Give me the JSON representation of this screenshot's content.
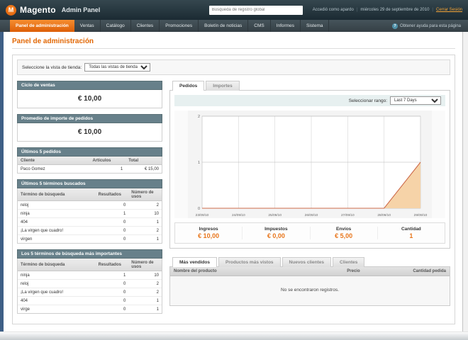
{
  "header": {
    "logo_title": "Magento",
    "logo_subtitle": "Admin Panel",
    "logo_icon": "magento-m-badge",
    "search_placeholder": "Búsqueda de registro global",
    "logged_in_as": "Accedió como apardo",
    "date": "miércoles 29 de septiembre de 2010",
    "logout": "Cerrar Sesión"
  },
  "nav": {
    "items": [
      {
        "label": "Panel de administración",
        "active": true
      },
      {
        "label": "Ventas",
        "active": false
      },
      {
        "label": "Catálogo",
        "active": false
      },
      {
        "label": "Clientes",
        "active": false
      },
      {
        "label": "Promociones",
        "active": false
      },
      {
        "label": "Boletín de noticias",
        "active": false
      },
      {
        "label": "CMS",
        "active": false
      },
      {
        "label": "Informes",
        "active": false
      },
      {
        "label": "Sistema",
        "active": false
      }
    ],
    "help_icon": "?",
    "help": "Obtener ayuda para esta página"
  },
  "page": {
    "title": "Panel de administración",
    "store_view_label": "Seleccione la vista de tienda:",
    "store_view_value": "Todas las vistas de tienda"
  },
  "left": {
    "lifetime": {
      "title": "Ciclo de ventas",
      "value": "€ 10,00"
    },
    "average": {
      "title": "Promedio de importe de pedidos",
      "value": "€ 10,00"
    },
    "last_orders": {
      "title": "Últimos 5 pedidos",
      "columns": [
        "Cliente",
        "Artículos",
        "Total"
      ],
      "rows": [
        [
          "Paco Gomez",
          "1",
          "€ 15,00"
        ]
      ]
    },
    "last_search": {
      "title": "Últimos 5 términos buscados",
      "columns": [
        "Término de búsqueda",
        "Resultados",
        "Número de usos"
      ],
      "rows": [
        [
          "reloj",
          "0",
          "2"
        ],
        [
          "ninja",
          "1",
          "10"
        ],
        [
          "404",
          "0",
          "1"
        ],
        [
          "¡La virgen que cuadro!",
          "0",
          "2"
        ],
        [
          "virgen",
          "0",
          "1"
        ]
      ]
    },
    "top_search": {
      "title": "Los 5 términos de búsqueda más importantes",
      "columns": [
        "Término de búsqueda",
        "Resultados",
        "Número de usos"
      ],
      "rows": [
        [
          "ninja",
          "1",
          "10"
        ],
        [
          "reloj",
          "0",
          "2"
        ],
        [
          "¡La virgen que cuadro!",
          "0",
          "2"
        ],
        [
          "404",
          "0",
          "1"
        ],
        [
          "virge",
          "0",
          "1"
        ]
      ]
    }
  },
  "dashboard": {
    "tabs": [
      {
        "label": "Pedidos",
        "active": true
      },
      {
        "label": "Importes",
        "active": false
      }
    ],
    "range_label": "Seleccionar rango:",
    "range_value": "Last 7 Days",
    "totals": [
      {
        "label": "Ingresos",
        "value": "€ 10,00"
      },
      {
        "label": "Impuestos",
        "value": "€ 0,00"
      },
      {
        "label": "Envíos",
        "value": "€ 5,00"
      },
      {
        "label": "Cantidad",
        "value": "1"
      }
    ],
    "bottom_tabs": [
      {
        "label": "Más vendidos",
        "active": true
      },
      {
        "label": "Productos más vistos",
        "active": false
      },
      {
        "label": "Nuevos clientes",
        "active": false
      },
      {
        "label": "Clientes",
        "active": false
      }
    ],
    "products_table": {
      "columns": [
        "Nombre del producto",
        "Precio",
        "Cantidad pedida"
      ],
      "empty": "No se encontraron registros."
    }
  },
  "chart_data": {
    "type": "area",
    "title": "Pedidos",
    "x": [
      "23/09/10",
      "24/09/10",
      "25/09/10",
      "26/09/10",
      "27/09/10",
      "28/09/10",
      "29/09/10"
    ],
    "values": [
      0,
      0,
      0,
      0,
      0,
      0,
      1
    ],
    "ylim": [
      0,
      2
    ],
    "yticks": [
      0,
      1,
      2
    ],
    "xlabel": "",
    "ylabel": "",
    "grid": true,
    "legend": "none",
    "line_color": "#cc6a4a",
    "fill_color": "#f6d3a8"
  }
}
